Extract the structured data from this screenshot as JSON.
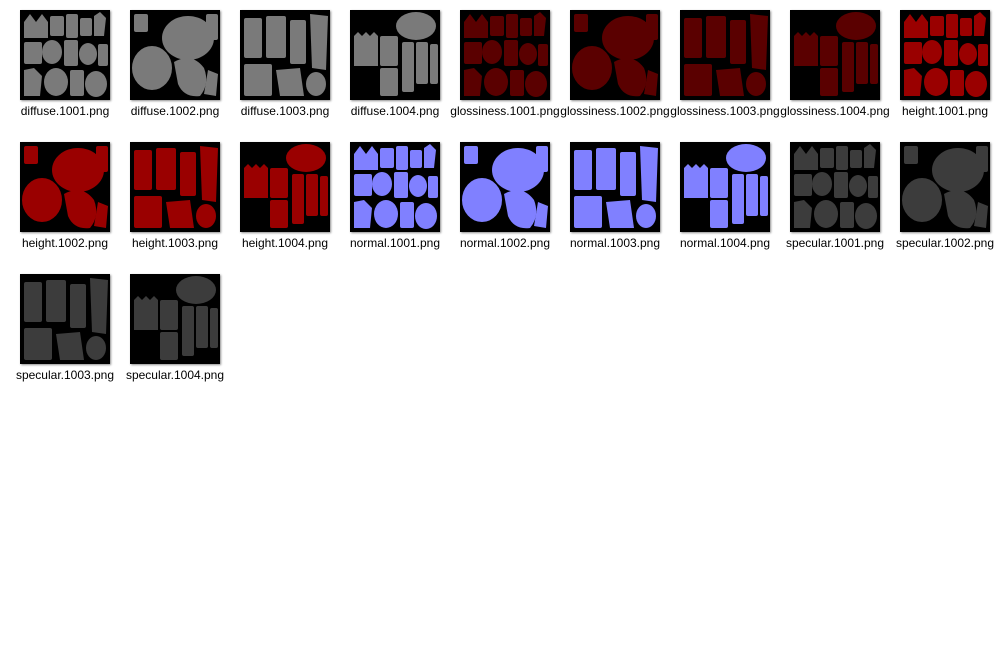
{
  "files": [
    {
      "name": "diffuse.1001.png",
      "map": "diffuse",
      "tile": 1001
    },
    {
      "name": "diffuse.1002.png",
      "map": "diffuse",
      "tile": 1002
    },
    {
      "name": "diffuse.1003.png",
      "map": "diffuse",
      "tile": 1003
    },
    {
      "name": "diffuse.1004.png",
      "map": "diffuse",
      "tile": 1004
    },
    {
      "name": "glossiness.1001.png",
      "map": "glossiness",
      "tile": 1001
    },
    {
      "name": "glossiness.1002.png",
      "map": "glossiness",
      "tile": 1002
    },
    {
      "name": "glossiness.1003.png",
      "map": "glossiness",
      "tile": 1003
    },
    {
      "name": "glossiness.1004.png",
      "map": "glossiness",
      "tile": 1004
    },
    {
      "name": "height.1001.png",
      "map": "height",
      "tile": 1001
    },
    {
      "name": "height.1002.png",
      "map": "height",
      "tile": 1002
    },
    {
      "name": "height.1003.png",
      "map": "height",
      "tile": 1003
    },
    {
      "name": "height.1004.png",
      "map": "height",
      "tile": 1004
    },
    {
      "name": "normal.1001.png",
      "map": "normal",
      "tile": 1001
    },
    {
      "name": "normal.1002.png",
      "map": "normal",
      "tile": 1002
    },
    {
      "name": "normal.1003.png",
      "map": "normal",
      "tile": 1003
    },
    {
      "name": "normal.1004.png",
      "map": "normal",
      "tile": 1004
    },
    {
      "name": "specular.1001.png",
      "map": "specular",
      "tile": 1001
    },
    {
      "name": "specular.1002.png",
      "map": "specular",
      "tile": 1002
    },
    {
      "name": "specular.1003.png",
      "map": "specular",
      "tile": 1003
    },
    {
      "name": "specular.1004.png",
      "map": "specular",
      "tile": 1004
    }
  ],
  "map_colors": {
    "diffuse": "#7a7a7a",
    "glossiness": "#5a0000",
    "height": "#9a0000",
    "normal": "#8080ff",
    "specular": "#3c3c3c"
  },
  "thumbnail_background": "#000000"
}
